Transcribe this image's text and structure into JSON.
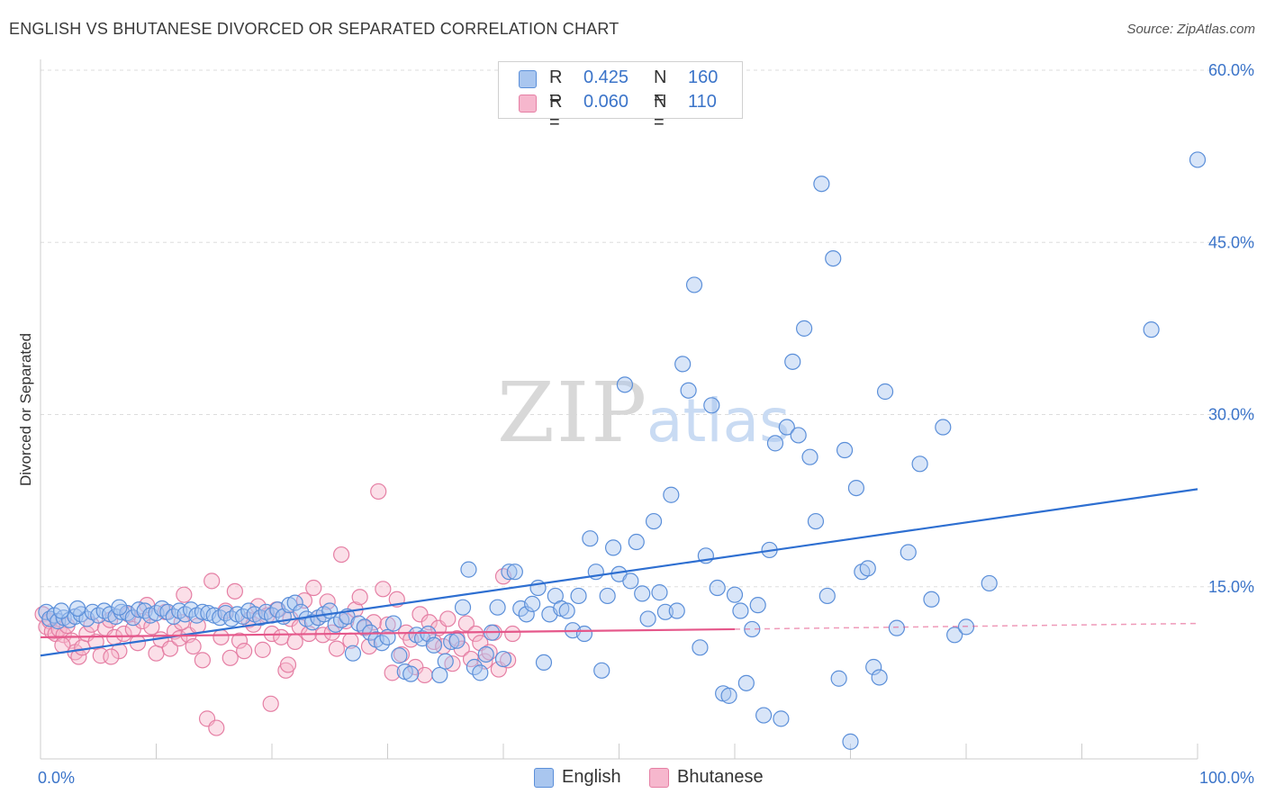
{
  "title": "ENGLISH VS BHUTANESE DIVORCED OR SEPARATED CORRELATION CHART",
  "source": "Source: ZipAtlas.com",
  "watermark": {
    "zip": "ZIP",
    "atlas": "atlas"
  },
  "legend": {
    "r_label": "R =",
    "n_label": "N =",
    "english": {
      "r": "0.425",
      "n": "160"
    },
    "bhutanese": {
      "r": "0.060",
      "n": "110"
    }
  },
  "colors": {
    "english_fill": "#a9c6ef",
    "english_stroke": "#5b8fd9",
    "english_line": "#2e6fd1",
    "bhutanese_fill": "#f6b7cd",
    "bhutanese_stroke": "#e57fa4",
    "bhutanese_line": "#e5578a",
    "tick_label": "#3b74c9",
    "grid": "#dddddd"
  },
  "chart_data": {
    "type": "scatter",
    "title": "ENGLISH VS BHUTANESE DIVORCED OR SEPARATED CORRELATION CHART",
    "xlabel": "",
    "ylabel": "Divorced or Separated",
    "xlim": [
      0,
      100
    ],
    "ylim": [
      0,
      60
    ],
    "x_tick_labels": [
      "0.0%",
      "100.0%"
    ],
    "y_ticks": [
      15,
      30,
      45,
      60
    ],
    "y_tick_labels": [
      "15.0%",
      "30.0%",
      "45.0%",
      "60.0%"
    ],
    "grid": true,
    "legend_position": "top-center",
    "series": [
      {
        "name": "English",
        "trend": {
          "x": [
            0,
            100
          ],
          "y": [
            9.0,
            23.5
          ]
        },
        "points": [
          [
            0.5,
            12.8
          ],
          [
            0.8,
            12.2
          ],
          [
            1.2,
            12.5
          ],
          [
            1.5,
            12.0
          ],
          [
            2,
            12.3
          ],
          [
            2.5,
            12.1
          ],
          [
            3,
            12.4
          ],
          [
            3.5,
            12.6
          ],
          [
            4,
            12.2
          ],
          [
            4.5,
            12.8
          ],
          [
            5,
            12.5
          ],
          [
            5.5,
            12.9
          ],
          [
            6,
            12.6
          ],
          [
            6.5,
            12.4
          ],
          [
            7,
            12.8
          ],
          [
            7.5,
            12.7
          ],
          [
            8,
            12.3
          ],
          [
            8.5,
            13.0
          ],
          [
            9,
            12.9
          ],
          [
            9.5,
            12.5
          ],
          [
            10,
            12.7
          ],
          [
            10.5,
            13.1
          ],
          [
            11,
            12.8
          ],
          [
            11.5,
            12.4
          ],
          [
            12,
            12.9
          ],
          [
            12.5,
            12.6
          ],
          [
            13,
            13.0
          ],
          [
            13.5,
            12.5
          ],
          [
            14,
            12.8
          ],
          [
            14.5,
            12.7
          ],
          [
            15,
            12.5
          ],
          [
            15.5,
            12.3
          ],
          [
            16,
            12.7
          ],
          [
            16.5,
            12.2
          ],
          [
            17,
            12.6
          ],
          [
            17.5,
            12.4
          ],
          [
            18,
            12.9
          ],
          [
            18.5,
            12.6
          ],
          [
            19,
            12.3
          ],
          [
            19.5,
            12.8
          ],
          [
            20,
            12.5
          ],
          [
            20.5,
            13.0
          ],
          [
            21,
            12.4
          ],
          [
            21.5,
            13.4
          ],
          [
            22,
            13.6
          ],
          [
            22.5,
            12.8
          ],
          [
            23,
            12.2
          ],
          [
            23.5,
            11.9
          ],
          [
            24,
            12.3
          ],
          [
            24.5,
            12.6
          ],
          [
            25,
            12.9
          ],
          [
            25.5,
            11.7
          ],
          [
            26,
            12.1
          ],
          [
            26.5,
            12.4
          ],
          [
            27,
            9.2
          ],
          [
            27.5,
            11.8
          ],
          [
            28,
            11.5
          ],
          [
            28.5,
            11.0
          ],
          [
            29,
            10.4
          ],
          [
            29.5,
            10.1
          ],
          [
            30,
            10.6
          ],
          [
            30.5,
            11.8
          ],
          [
            31,
            9.0
          ],
          [
            31.5,
            7.6
          ],
          [
            32,
            7.4
          ],
          [
            32.5,
            10.8
          ],
          [
            33,
            10.5
          ],
          [
            33.5,
            10.9
          ],
          [
            34,
            9.9
          ],
          [
            34.5,
            7.3
          ],
          [
            35,
            8.5
          ],
          [
            35.5,
            10.2
          ],
          [
            36,
            10.3
          ],
          [
            36.5,
            13.2
          ],
          [
            37,
            16.5
          ],
          [
            37.5,
            8.0
          ],
          [
            38,
            7.5
          ],
          [
            38.5,
            9.1
          ],
          [
            39,
            11.0
          ],
          [
            39.5,
            13.2
          ],
          [
            40,
            8.7
          ],
          [
            40.5,
            16.3
          ],
          [
            41,
            16.3
          ],
          [
            41.5,
            13.1
          ],
          [
            42,
            12.6
          ],
          [
            42.5,
            13.5
          ],
          [
            43,
            14.9
          ],
          [
            43.5,
            8.4
          ],
          [
            44,
            12.6
          ],
          [
            44.5,
            14.2
          ],
          [
            45,
            13.1
          ],
          [
            45.5,
            12.9
          ],
          [
            46,
            11.2
          ],
          [
            46.5,
            14.2
          ],
          [
            47,
            10.9
          ],
          [
            47.5,
            19.2
          ],
          [
            48,
            16.3
          ],
          [
            48.5,
            7.7
          ],
          [
            49,
            14.2
          ],
          [
            49.5,
            18.4
          ],
          [
            50,
            16.1
          ],
          [
            50.5,
            32.6
          ],
          [
            51,
            15.5
          ],
          [
            51.5,
            18.9
          ],
          [
            52,
            14.4
          ],
          [
            52.5,
            12.2
          ],
          [
            53,
            20.7
          ],
          [
            53.5,
            14.5
          ],
          [
            54,
            12.8
          ],
          [
            54.5,
            23.0
          ],
          [
            55,
            12.9
          ],
          [
            55.5,
            34.4
          ],
          [
            56,
            32.1
          ],
          [
            56.5,
            41.3
          ],
          [
            57,
            9.7
          ],
          [
            57.5,
            17.7
          ],
          [
            58,
            30.8
          ],
          [
            58.5,
            14.9
          ],
          [
            59,
            5.7
          ],
          [
            59.5,
            5.5
          ],
          [
            60,
            14.3
          ],
          [
            60.5,
            12.9
          ],
          [
            61,
            6.6
          ],
          [
            61.5,
            11.3
          ],
          [
            62,
            13.4
          ],
          [
            62.5,
            3.8
          ],
          [
            63,
            18.2
          ],
          [
            63.5,
            27.5
          ],
          [
            64,
            3.5
          ],
          [
            64.5,
            28.9
          ],
          [
            65,
            34.6
          ],
          [
            65.5,
            28.2
          ],
          [
            66,
            37.5
          ],
          [
            66.5,
            26.3
          ],
          [
            67,
            20.7
          ],
          [
            67.5,
            50.1
          ],
          [
            68,
            14.2
          ],
          [
            68.5,
            43.6
          ],
          [
            69,
            7.0
          ],
          [
            69.5,
            26.9
          ],
          [
            70,
            1.5
          ],
          [
            70.5,
            23.6
          ],
          [
            71,
            16.3
          ],
          [
            71.5,
            16.6
          ],
          [
            72,
            8.0
          ],
          [
            72.5,
            7.1
          ],
          [
            73,
            32.0
          ],
          [
            74,
            11.4
          ],
          [
            75,
            18.0
          ],
          [
            76,
            25.7
          ],
          [
            77,
            13.9
          ],
          [
            78,
            28.9
          ],
          [
            79,
            10.8
          ],
          [
            80,
            11.5
          ],
          [
            82,
            15.3
          ],
          [
            96,
            37.4
          ],
          [
            100,
            52.2
          ],
          [
            1.8,
            12.9
          ],
          [
            3.2,
            13.1
          ],
          [
            6.8,
            13.2
          ]
        ]
      },
      {
        "name": "Bhutanese",
        "trend": {
          "x": [
            0,
            60
          ],
          "y": [
            10.6,
            11.3
          ]
        },
        "trend_dashed": {
          "x": [
            60,
            100
          ],
          "y": [
            11.3,
            11.8
          ]
        },
        "points": [
          [
            0.2,
            12.6
          ],
          [
            0.5,
            11.5
          ],
          [
            0.8,
            12.0
          ],
          [
            1.0,
            11.1
          ],
          [
            1.3,
            10.9
          ],
          [
            1.6,
            11.3
          ],
          [
            2.0,
            10.8
          ],
          [
            2.3,
            11.6
          ],
          [
            2.7,
            10.3
          ],
          [
            3.0,
            9.3
          ],
          [
            3.3,
            8.9
          ],
          [
            3.6,
            9.7
          ],
          [
            4.0,
            10.9
          ],
          [
            4.4,
            11.7
          ],
          [
            4.8,
            10.2
          ],
          [
            5.2,
            9.0
          ],
          [
            5.6,
            11.4
          ],
          [
            6.0,
            12.1
          ],
          [
            6.4,
            10.6
          ],
          [
            6.8,
            9.4
          ],
          [
            7.2,
            10.9
          ],
          [
            7.6,
            12.6
          ],
          [
            8.0,
            11.3
          ],
          [
            8.4,
            10.1
          ],
          [
            8.8,
            12.0
          ],
          [
            9.2,
            13.4
          ],
          [
            9.6,
            11.5
          ],
          [
            10.0,
            9.2
          ],
          [
            10.4,
            10.4
          ],
          [
            10.8,
            12.8
          ],
          [
            11.2,
            9.6
          ],
          [
            11.6,
            11.1
          ],
          [
            12.0,
            10.5
          ],
          [
            12.4,
            14.3
          ],
          [
            12.8,
            10.8
          ],
          [
            13.2,
            9.8
          ],
          [
            13.6,
            11.6
          ],
          [
            14.0,
            8.6
          ],
          [
            14.4,
            3.5
          ],
          [
            14.8,
            15.5
          ],
          [
            15.2,
            2.7
          ],
          [
            15.6,
            10.6
          ],
          [
            16.0,
            12.9
          ],
          [
            16.4,
            8.8
          ],
          [
            16.8,
            14.6
          ],
          [
            17.2,
            10.3
          ],
          [
            17.6,
            9.4
          ],
          [
            18.0,
            12.1
          ],
          [
            18.4,
            11.7
          ],
          [
            18.8,
            13.3
          ],
          [
            19.2,
            9.5
          ],
          [
            19.6,
            12.5
          ],
          [
            20.0,
            10.9
          ],
          [
            20.4,
            13.0
          ],
          [
            20.8,
            10.6
          ],
          [
            21.2,
            7.7
          ],
          [
            21.6,
            12.2
          ],
          [
            22.0,
            10.2
          ],
          [
            22.4,
            11.5
          ],
          [
            22.8,
            13.8
          ],
          [
            23.2,
            10.9
          ],
          [
            23.6,
            14.9
          ],
          [
            24.0,
            12.3
          ],
          [
            24.4,
            10.8
          ],
          [
            24.8,
            13.7
          ],
          [
            25.2,
            11.0
          ],
          [
            25.6,
            9.6
          ],
          [
            26.0,
            17.8
          ],
          [
            26.4,
            12.0
          ],
          [
            26.8,
            10.3
          ],
          [
            27.2,
            13.0
          ],
          [
            27.6,
            14.1
          ],
          [
            28.0,
            11.4
          ],
          [
            28.4,
            9.8
          ],
          [
            28.8,
            11.9
          ],
          [
            29.2,
            23.3
          ],
          [
            29.6,
            14.8
          ],
          [
            30.0,
            11.7
          ],
          [
            30.4,
            7.5
          ],
          [
            30.8,
            13.9
          ],
          [
            31.2,
            9.1
          ],
          [
            31.6,
            11.0
          ],
          [
            32.0,
            10.4
          ],
          [
            32.4,
            8.0
          ],
          [
            32.8,
            12.6
          ],
          [
            33.2,
            7.3
          ],
          [
            33.6,
            11.9
          ],
          [
            34.0,
            10.2
          ],
          [
            34.4,
            11.4
          ],
          [
            34.8,
            9.8
          ],
          [
            35.2,
            12.2
          ],
          [
            35.6,
            8.3
          ],
          [
            36.0,
            10.5
          ],
          [
            36.4,
            9.6
          ],
          [
            36.8,
            11.8
          ],
          [
            37.2,
            8.7
          ],
          [
            37.6,
            10.9
          ],
          [
            38.0,
            10.1
          ],
          [
            38.4,
            8.5
          ],
          [
            38.8,
            9.3
          ],
          [
            39.2,
            11.0
          ],
          [
            39.6,
            7.8
          ],
          [
            40.0,
            15.9
          ],
          [
            40.4,
            8.6
          ],
          [
            40.8,
            10.9
          ],
          [
            21.4,
            8.2
          ],
          [
            19.9,
            4.8
          ],
          [
            1.9,
            9.9
          ],
          [
            6.1,
            8.9
          ],
          [
            12.2,
            11.9
          ]
        ]
      }
    ]
  }
}
